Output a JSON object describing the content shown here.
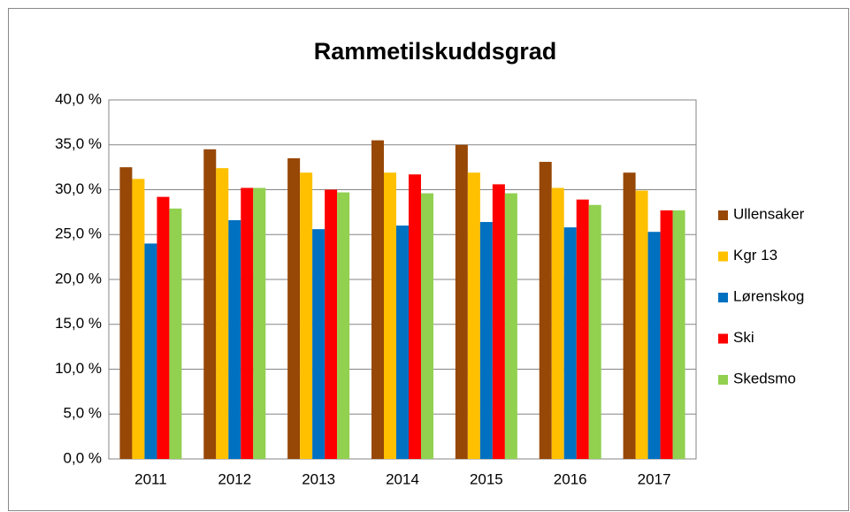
{
  "chart_data": {
    "type": "bar",
    "title": "Rammetilskuddsgrad",
    "categories": [
      "2011",
      "2012",
      "2013",
      "2014",
      "2015",
      "2016",
      "2017"
    ],
    "series": [
      {
        "name": "Ullensaker",
        "color": "#974706",
        "values": [
          32.5,
          34.5,
          33.5,
          35.5,
          35.0,
          33.1,
          31.9
        ]
      },
      {
        "name": "Kgr 13",
        "color": "#ffc000",
        "values": [
          31.2,
          32.4,
          31.9,
          31.9,
          31.9,
          30.2,
          29.9
        ]
      },
      {
        "name": "Lørenskog",
        "color": "#0070c0",
        "values": [
          24.0,
          26.6,
          25.6,
          26.0,
          26.4,
          25.8,
          25.3
        ]
      },
      {
        "name": "Ski",
        "color": "#ff0000",
        "values": [
          29.2,
          30.2,
          30.0,
          31.7,
          30.6,
          28.9,
          27.7
        ]
      },
      {
        "name": "Skedsmo",
        "color": "#92d050",
        "values": [
          27.9,
          30.2,
          29.7,
          29.6,
          29.6,
          28.3,
          27.7
        ]
      }
    ],
    "ylim": [
      0,
      40
    ],
    "yticks": [
      {
        "value": 0,
        "label": "0,0 %"
      },
      {
        "value": 5,
        "label": "5,0 %"
      },
      {
        "value": 10,
        "label": "10,0 %"
      },
      {
        "value": 15,
        "label": "15,0 %"
      },
      {
        "value": 20,
        "label": "20,0 %"
      },
      {
        "value": 25,
        "label": "25,0 %"
      },
      {
        "value": 30,
        "label": "30,0 %"
      },
      {
        "value": 35,
        "label": "35,0 %"
      },
      {
        "value": 40,
        "label": "40,0 %"
      }
    ],
    "grid": true,
    "legend": "right"
  }
}
